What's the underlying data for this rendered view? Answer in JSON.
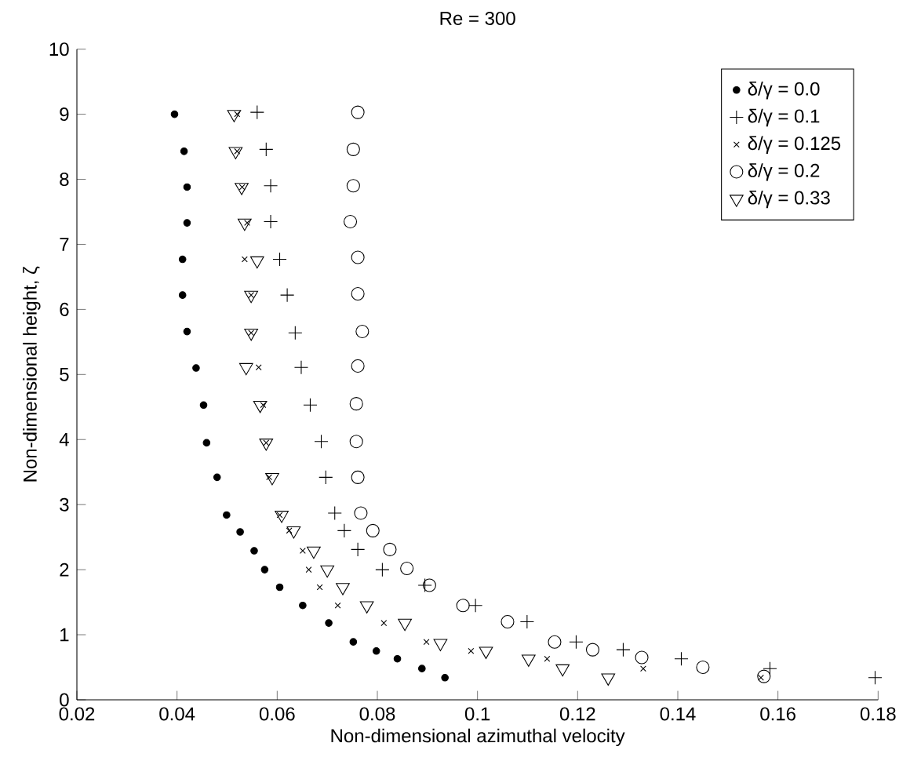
{
  "chart_data": {
    "type": "scatter",
    "title": "Re = 300",
    "xlabel": "Non-dimensional azimuthal velocity",
    "ylabel": "Non-dimensional height, ζ",
    "xlim": [
      0.02,
      0.18
    ],
    "ylim": [
      0,
      10
    ],
    "xticks": [
      0.02,
      0.04,
      0.06,
      0.08,
      0.1,
      0.12,
      0.14,
      0.16,
      0.18
    ],
    "yticks": [
      0,
      1,
      2,
      3,
      4,
      5,
      6,
      7,
      8,
      9,
      10
    ],
    "grid": false,
    "legend": "top right",
    "series": [
      {
        "name": "δ/γ = 0.0",
        "color": "#000000",
        "marker": "point",
        "x": [
          0.0395,
          0.0414,
          0.042,
          0.042,
          0.0411,
          0.0411,
          0.042,
          0.0438,
          0.0453,
          0.0459,
          0.048,
          0.0499,
          0.0526,
          0.0554,
          0.0575,
          0.0605,
          0.0651,
          0.0703,
          0.0752,
          0.0798,
          0.084,
          0.0889,
          0.0935
        ],
        "values": [
          9.0,
          8.43,
          7.88,
          7.33,
          6.77,
          6.22,
          5.66,
          5.1,
          4.53,
          3.95,
          3.42,
          2.84,
          2.58,
          2.29,
          2.0,
          1.73,
          1.45,
          1.18,
          0.89,
          0.75,
          0.63,
          0.48,
          0.34
        ]
      },
      {
        "name": "δ/γ = 0.1",
        "color": "#000000",
        "marker": "plus",
        "x": [
          0.056,
          0.0578,
          0.0587,
          0.0587,
          0.0605,
          0.062,
          0.0636,
          0.0648,
          0.0666,
          0.0688,
          0.0697,
          0.0715,
          0.0734,
          0.0761,
          0.081,
          0.0895,
          0.0996,
          0.1099,
          0.1197,
          0.1291,
          0.1407,
          0.1584,
          0.1794
        ],
        "values": [
          9.03,
          8.46,
          7.9,
          7.35,
          6.77,
          6.22,
          5.64,
          5.11,
          4.53,
          3.97,
          3.42,
          2.87,
          2.6,
          2.31,
          2.0,
          1.76,
          1.45,
          1.2,
          0.89,
          0.77,
          0.63,
          0.48,
          0.34
        ]
      },
      {
        "name": "δ/γ = 0.125",
        "color": "#000000",
        "marker": "x",
        "x": [
          0.052,
          0.052,
          0.053,
          0.054,
          0.0535,
          0.0548,
          0.0548,
          0.0563,
          0.0572,
          0.0578,
          0.0584,
          0.0605,
          0.0624,
          0.0651,
          0.0663,
          0.0685,
          0.0721,
          0.0813,
          0.0898,
          0.0987,
          0.1139,
          0.1331,
          0.1566
        ],
        "values": [
          9.0,
          8.43,
          7.88,
          7.33,
          6.77,
          6.22,
          5.64,
          5.11,
          4.53,
          3.95,
          3.42,
          2.84,
          2.6,
          2.29,
          2.0,
          1.73,
          1.45,
          1.18,
          0.89,
          0.75,
          0.63,
          0.48,
          0.34
        ]
      },
      {
        "name": "δ/γ = 0.2",
        "color": "#000000",
        "marker": "circle",
        "x": [
          0.0761,
          0.0752,
          0.0752,
          0.0746,
          0.0761,
          0.0761,
          0.077,
          0.0761,
          0.0758,
          0.0758,
          0.0761,
          0.0767,
          0.0791,
          0.0825,
          0.0859,
          0.0904,
          0.0971,
          0.106,
          0.1154,
          0.123,
          0.1328,
          0.145,
          0.1572
        ],
        "values": [
          9.03,
          8.46,
          7.9,
          7.35,
          6.8,
          6.24,
          5.66,
          5.13,
          4.55,
          3.97,
          3.42,
          2.87,
          2.6,
          2.31,
          2.02,
          1.76,
          1.45,
          1.2,
          0.89,
          0.77,
          0.65,
          0.5,
          0.36
        ]
      },
      {
        "name": "δ/γ = 0.33",
        "color": "#000000",
        "marker": "triangle",
        "x": [
          0.0514,
          0.0517,
          0.0529,
          0.0535,
          0.056,
          0.0548,
          0.0548,
          0.0538,
          0.0566,
          0.0578,
          0.059,
          0.0609,
          0.0633,
          0.0673,
          0.07,
          0.0731,
          0.0779,
          0.0855,
          0.0926,
          0.1017,
          0.1102,
          0.117,
          0.1261
        ],
        "values": [
          9.0,
          8.43,
          7.88,
          7.33,
          6.75,
          6.22,
          5.64,
          5.11,
          4.53,
          3.95,
          3.42,
          2.84,
          2.6,
          2.29,
          2.0,
          1.73,
          1.45,
          1.18,
          0.87,
          0.75,
          0.63,
          0.48,
          0.34
        ]
      }
    ]
  }
}
